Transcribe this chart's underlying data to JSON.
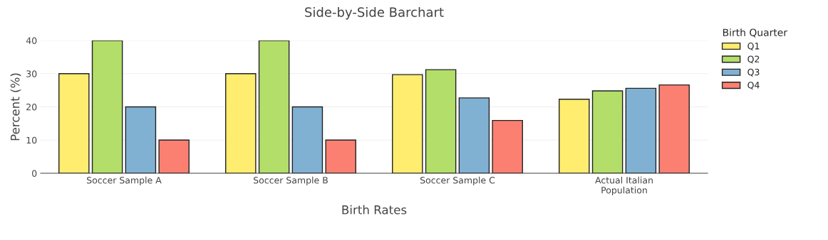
{
  "chart_data": {
    "type": "bar",
    "title": "Side-by-Side Barchart",
    "xlabel": "Birth Rates",
    "ylabel": "Percent (%)",
    "legend_title": "Birth Quarter",
    "categories": [
      "Soccer Sample A",
      "Soccer Sample B",
      "Soccer Sample C",
      "Actual Italian\nPopulation"
    ],
    "series": [
      {
        "name": "Q1",
        "color": "#ffed6f",
        "values": [
          30,
          30,
          29.7,
          22.3
        ]
      },
      {
        "name": "Q2",
        "color": "#b3de69",
        "values": [
          40,
          40,
          31.2,
          24.8
        ]
      },
      {
        "name": "Q3",
        "color": "#80b1d3",
        "values": [
          20,
          20,
          22.7,
          25.6
        ]
      },
      {
        "name": "Q4",
        "color": "#fb8072",
        "values": [
          10,
          10,
          15.9,
          26.6
        ]
      }
    ],
    "ylim": [
      0,
      40
    ],
    "yticks": [
      0,
      10,
      20,
      30,
      40
    ],
    "grid": "y",
    "legend": "top right"
  }
}
